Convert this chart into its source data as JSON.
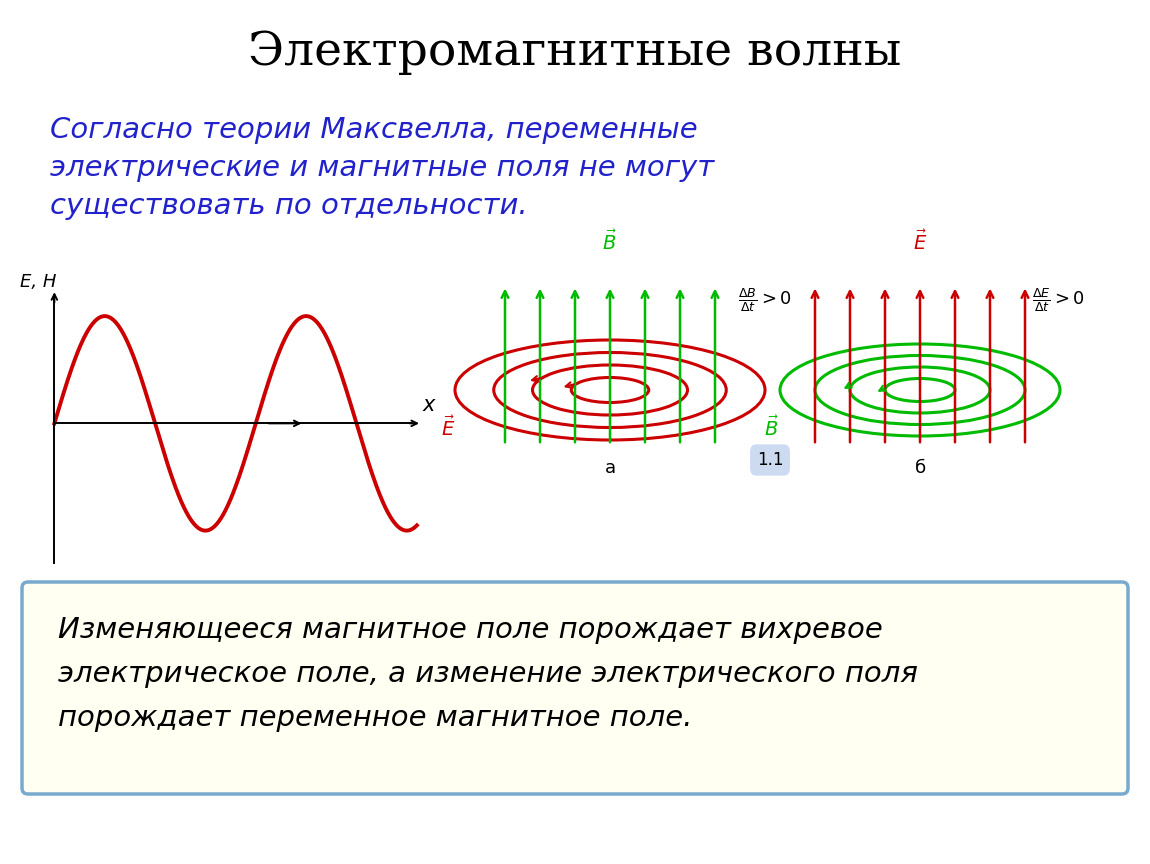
{
  "title": "Электромагнитные волны",
  "subtitle_line1": "Согласно теории Максвелла, переменные",
  "subtitle_line2": "электрические и магнитные поля не могут",
  "subtitle_line3": "существовать по отдельности.",
  "bottom_text_line1": "Изменяющееся магнитное поле порождает вихревое",
  "bottom_text_line2": "электрическое поле, а изменение электрического поля",
  "bottom_text_line3": "порождает переменное магнитное поле.",
  "title_color": "#000000",
  "subtitle_color": "#2222CC",
  "bottom_text_color": "#000000",
  "wave_color": "#CC0000",
  "bg_color": "#FFFFFF",
  "box_bg_color": "#FFFFF2",
  "box_border_color": "#77AACC",
  "green": "#00BB00",
  "red": "#CC0000",
  "label_a": "a",
  "label_b": "б",
  "label_11": "1.1"
}
